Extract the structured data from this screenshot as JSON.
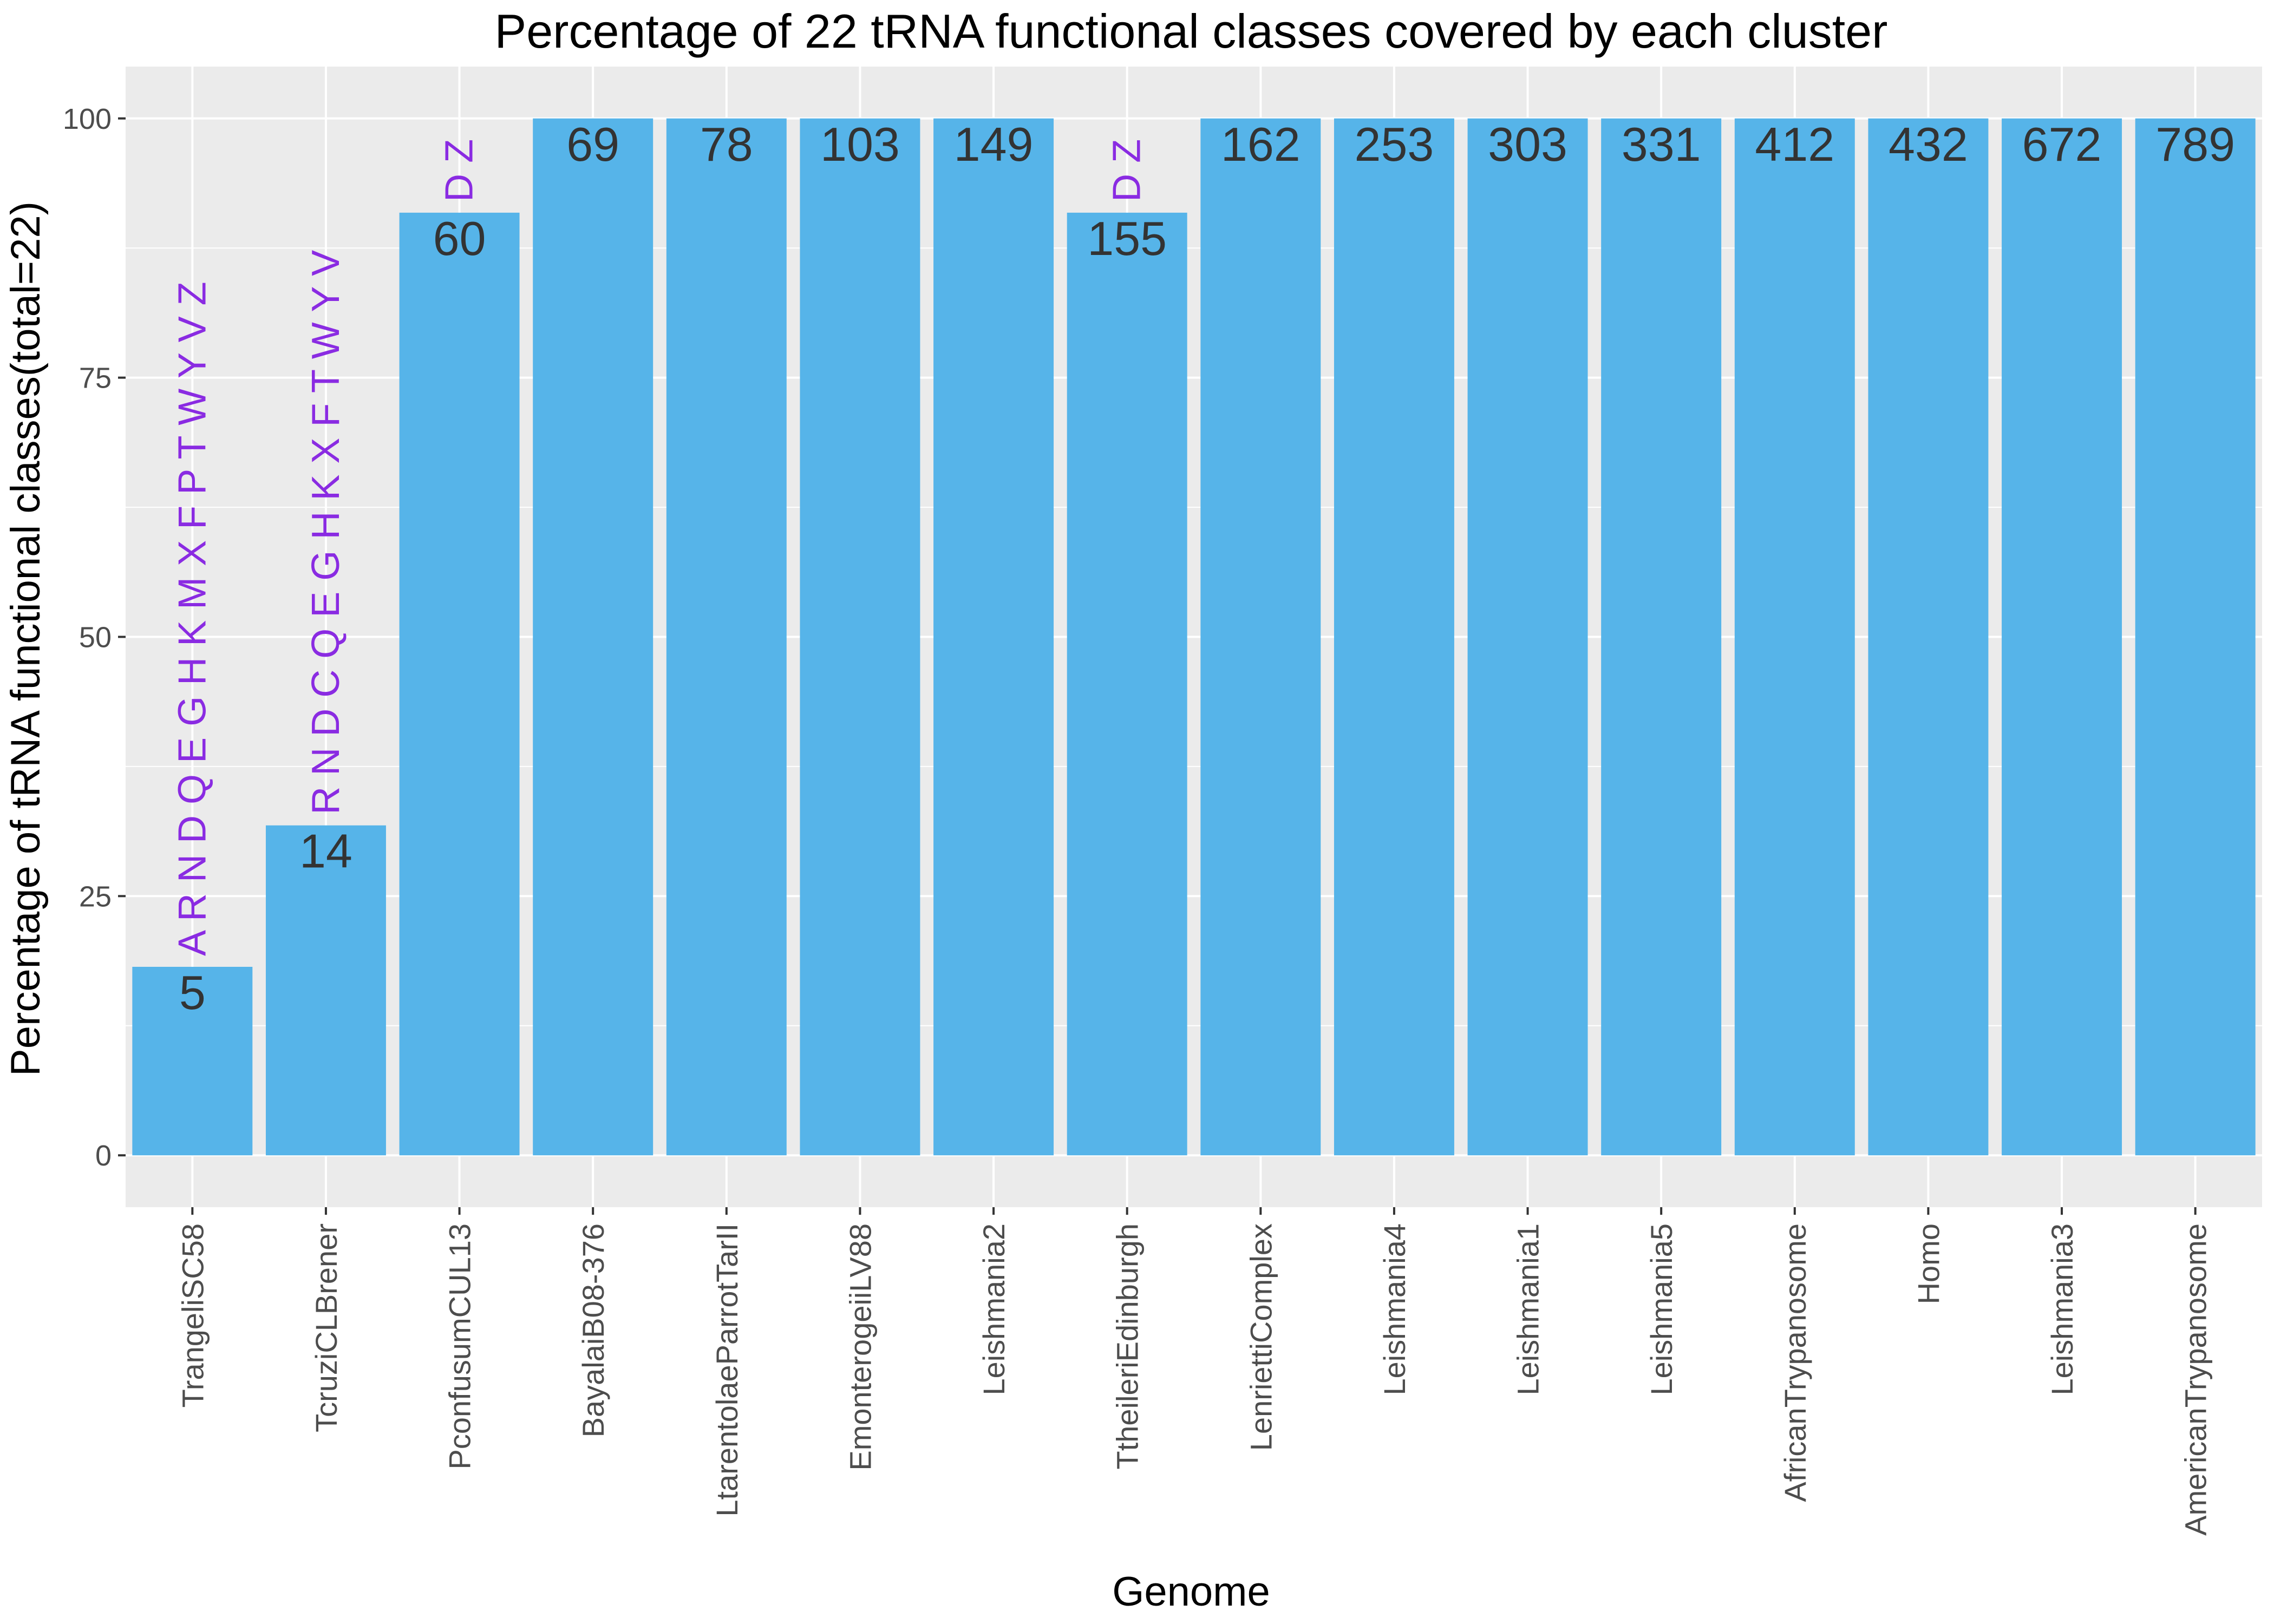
{
  "chart_data": {
    "type": "bar",
    "title": "Percentage of 22 tRNA functional classes covered by each cluster",
    "xlabel": "Genome",
    "ylabel": "Percentage of tRNA functional classes(total=22)",
    "ylim": [
      -5,
      105
    ],
    "yticks": [
      0,
      25,
      50,
      75,
      100
    ],
    "grid": true,
    "categories": [
      "TrangeliSC58",
      "TcruziCLBrener",
      "PconfusumCUL13",
      "BayalaiB08-376",
      "LtarentolaeParrotTarII",
      "EmonterogeiiLV88",
      "Leishmania2",
      "TtheileriEdinburgh",
      "LenriettiComplex",
      "Leishmania4",
      "Leishmania1",
      "Leishmania5",
      "AfricanTrypanosome",
      "Homo",
      "Leishmania3",
      "AmericanTrypanosome"
    ],
    "values": [
      18.18,
      31.82,
      90.91,
      100,
      100,
      100,
      100,
      90.91,
      100,
      100,
      100,
      100,
      100,
      100,
      100,
      100
    ],
    "count_labels": [
      "5",
      "14",
      "60",
      "69",
      "78",
      "103",
      "149",
      "155",
      "162",
      "253",
      "303",
      "331",
      "412",
      "432",
      "672",
      "789"
    ],
    "missing_labels": [
      "A R N D Q E G H K M X F P T W Y V Z",
      "R N D C Q E G H K X F T W Y V",
      "D Z",
      "",
      "",
      "",
      "",
      "D Z",
      "",
      "",
      "",
      "",
      "",
      "",
      "",
      ""
    ]
  },
  "colors": {
    "bar": "#56B4E9",
    "panel": "#EBEBEB",
    "grid_major": "#FFFFFF",
    "missing_text": "#8A2BE2",
    "count_text": "#333333"
  }
}
